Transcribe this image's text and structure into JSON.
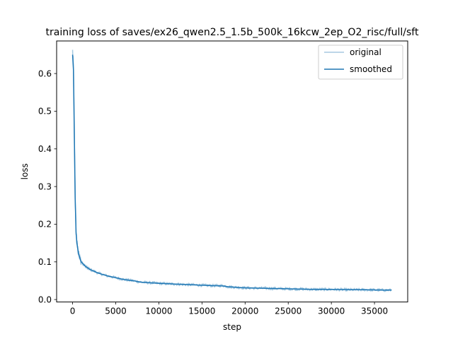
{
  "chart_data": {
    "type": "line",
    "title": "training loss of saves/ex26_qwen2.5_1.5b_500k_16kcw_2ep_O2_risc/full/sft",
    "xlabel": "step",
    "ylabel": "loss",
    "xlim": [
      -1850,
      38850
    ],
    "ylim": [
      -0.0065,
      0.6865
    ],
    "xticks": [
      0,
      5000,
      10000,
      15000,
      20000,
      25000,
      30000,
      35000
    ],
    "xtick_labels": [
      "0",
      "5000",
      "10000",
      "15000",
      "20000",
      "25000",
      "30000",
      "35000"
    ],
    "yticks": [
      0.0,
      0.1,
      0.2,
      0.3,
      0.4,
      0.5,
      0.6
    ],
    "ytick_labels": [
      "0.0",
      "0.1",
      "0.2",
      "0.3",
      "0.4",
      "0.5",
      "0.6"
    ],
    "grid": false,
    "legend_position": "upper right",
    "series": [
      {
        "name": "original",
        "color": "#1f77b4",
        "alpha": 0.4,
        "noise": 0.004,
        "x": [
          0,
          100,
          200,
          300,
          400,
          500,
          700,
          1000,
          1500,
          2000,
          3000,
          4000,
          5000,
          6000,
          7000,
          8000,
          10000,
          12000,
          14000,
          16000,
          17500,
          18000,
          20000,
          22000,
          24000,
          26000,
          28000,
          30000,
          32000,
          34000,
          36000,
          37000
        ],
        "y": [
          0.66,
          0.62,
          0.45,
          0.27,
          0.18,
          0.15,
          0.12,
          0.1,
          0.088,
          0.08,
          0.07,
          0.063,
          0.058,
          0.053,
          0.05,
          0.046,
          0.043,
          0.041,
          0.039,
          0.037,
          0.037,
          0.034,
          0.031,
          0.03,
          0.029,
          0.028,
          0.027,
          0.027,
          0.026,
          0.026,
          0.025,
          0.025
        ]
      },
      {
        "name": "smoothed",
        "color": "#1f77b4",
        "alpha": 1.0,
        "x": [
          0,
          100,
          200,
          300,
          400,
          500,
          700,
          1000,
          1500,
          2000,
          3000,
          4000,
          5000,
          6000,
          7000,
          8000,
          10000,
          12000,
          14000,
          16000,
          17500,
          18000,
          20000,
          22000,
          24000,
          26000,
          28000,
          30000,
          32000,
          34000,
          36000,
          37000
        ],
        "y": [
          0.65,
          0.61,
          0.44,
          0.27,
          0.18,
          0.15,
          0.12,
          0.1,
          0.088,
          0.08,
          0.07,
          0.063,
          0.058,
          0.053,
          0.05,
          0.046,
          0.043,
          0.041,
          0.039,
          0.037,
          0.036,
          0.034,
          0.031,
          0.03,
          0.029,
          0.028,
          0.027,
          0.027,
          0.026,
          0.026,
          0.025,
          0.025
        ]
      }
    ]
  }
}
